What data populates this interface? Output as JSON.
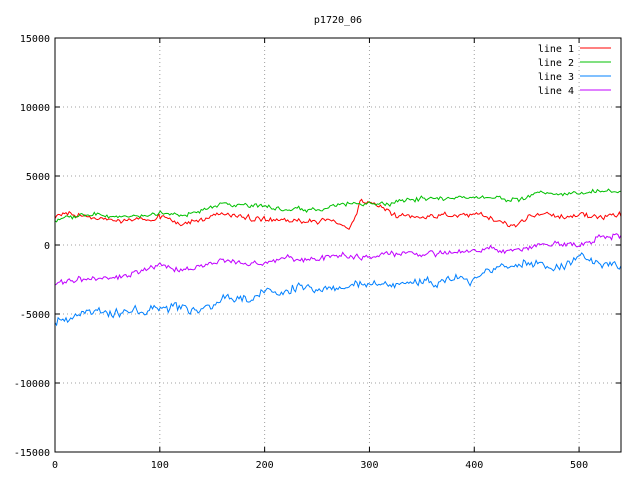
{
  "chart_data": {
    "type": "line",
    "title": "p1720_06",
    "xlabel": "",
    "ylabel": "",
    "xlim": [
      0,
      540
    ],
    "ylim": [
      -15000,
      15000
    ],
    "x_ticks": [
      0,
      100,
      200,
      300,
      400,
      500
    ],
    "y_ticks": [
      -15000,
      -10000,
      -5000,
      0,
      5000,
      10000,
      15000
    ],
    "grid": true,
    "legend_position": "top-right",
    "x": [
      0,
      20,
      40,
      60,
      80,
      100,
      120,
      140,
      160,
      180,
      200,
      220,
      240,
      260,
      280,
      300,
      320,
      340,
      360,
      380,
      400,
      420,
      440,
      460,
      480,
      500,
      520,
      540
    ],
    "series": [
      {
        "name": "line 1",
        "color": "#ff0000",
        "values": [
          2000,
          2200,
          1900,
          1700,
          1800,
          2100,
          1600,
          1800,
          2300,
          2000,
          1900,
          1800,
          1700,
          1800,
          1300,
          3300,
          2200,
          2000,
          2100,
          2100,
          2200,
          1900,
          1400,
          2300,
          2100,
          2100,
          2000,
          2200
        ],
        "annotations": [
          {
            "x": 292,
            "y": 3400
          }
        ]
      },
      {
        "name": "line 2",
        "color": "#00c000",
        "values": [
          1900,
          2100,
          2200,
          2000,
          2100,
          2300,
          2200,
          2500,
          3000,
          2900,
          2800,
          2700,
          2500,
          2700,
          3000,
          3000,
          3000,
          3300,
          3400,
          3400,
          3500,
          3500,
          3200,
          3800,
          3700,
          3700,
          3900,
          3900
        ]
      },
      {
        "name": "line 3",
        "color": "#0080ff",
        "values": [
          -5500,
          -5000,
          -4900,
          -5000,
          -4800,
          -4900,
          -4600,
          -4900,
          -3800,
          -4000,
          -3500,
          -3300,
          -3000,
          -3100,
          -2800,
          -2800,
          -2900,
          -2500,
          -2700,
          -2500,
          -2600,
          -1500,
          -1400,
          -1400,
          -1800,
          -900,
          -1200,
          -1600
        ]
      },
      {
        "name": "line 4",
        "color": "#c000ff",
        "values": [
          -2700,
          -2600,
          -2400,
          -2300,
          -2000,
          -1400,
          -1700,
          -1600,
          -1000,
          -1300,
          -1300,
          -900,
          -1000,
          -800,
          -800,
          -900,
          -800,
          -600,
          -700,
          -600,
          -400,
          -300,
          -400,
          -100,
          0,
          100,
          500,
          700
        ]
      }
    ]
  }
}
